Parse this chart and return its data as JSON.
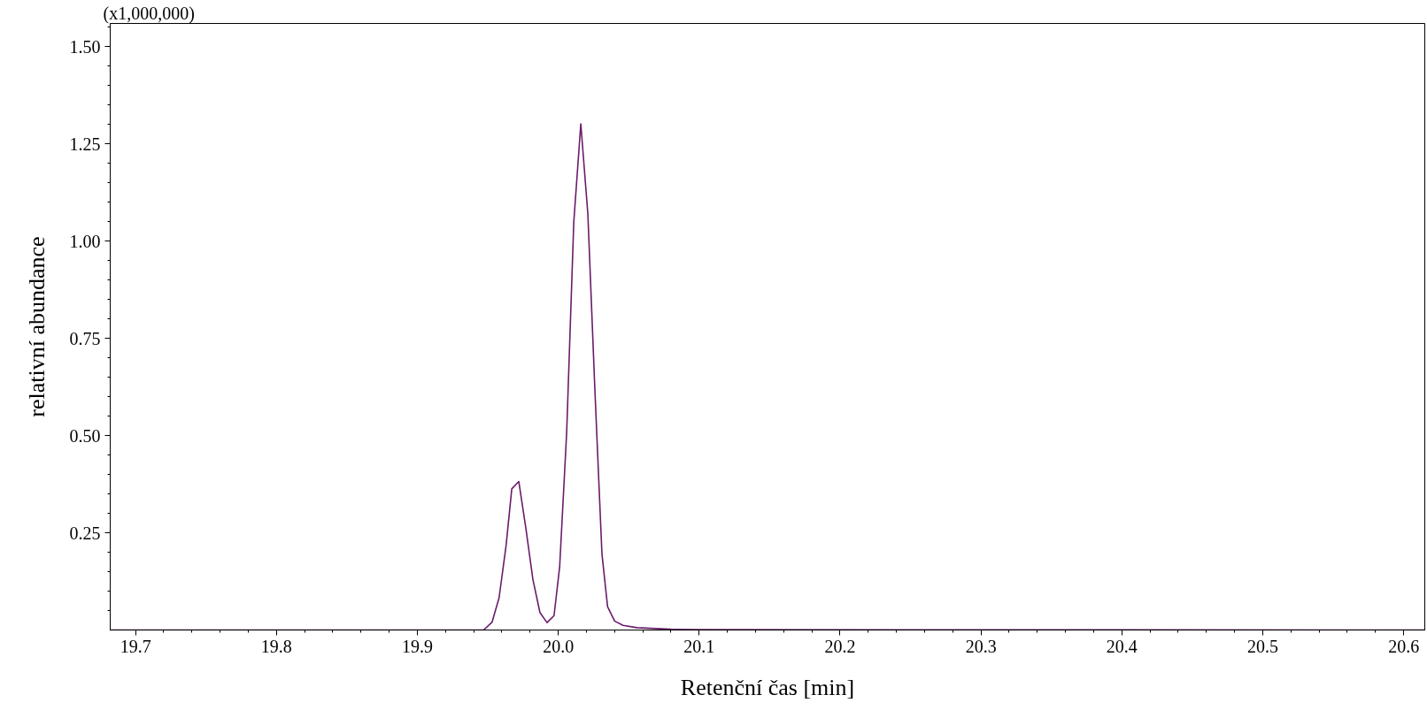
{
  "chart_data": {
    "type": "line",
    "xlabel": "Retenční čas [min]",
    "ylabel": "relativní abundance",
    "annotations": [
      "(x1,000,000)"
    ],
    "x": [
      19.682,
      19.9306,
      19.947,
      19.953,
      19.958,
      19.963,
      19.967,
      19.972,
      19.977,
      19.982,
      19.987,
      19.992,
      19.997,
      20.001,
      20.006,
      20.011,
      20.016,
      20.021,
      20.026,
      20.031,
      20.035,
      20.04,
      20.046,
      20.056,
      20.08,
      20.1,
      20.615
    ],
    "series": [
      {
        "color": "#6a1b6a",
        "values": [
          0,
          0,
          0,
          0.02,
          0.083,
          0.218,
          0.363,
          0.382,
          0.262,
          0.13,
          0.045,
          0.019,
          0.037,
          0.163,
          0.511,
          1.048,
          1.302,
          1.07,
          0.617,
          0.196,
          0.06,
          0.023,
          0.012,
          0.006,
          0.002,
          0.001,
          0
        ]
      }
    ],
    "xlim": [
      19.682,
      20.615
    ],
    "ylim": [
      0,
      1.56
    ],
    "xticks": [
      19.7,
      {
        "value": 19.72,
        "label": null
      },
      {
        "value": 19.74,
        "label": null
      },
      {
        "value": 19.76,
        "label": null
      },
      {
        "value": 19.78,
        "label": null
      },
      19.8,
      {
        "value": 19.82,
        "label": null
      },
      {
        "value": 19.84,
        "label": null
      },
      {
        "value": 19.86,
        "label": null
      },
      {
        "value": 19.88,
        "label": null
      },
      19.9,
      {
        "value": 19.92,
        "label": null
      },
      {
        "value": 19.94,
        "label": null
      },
      {
        "value": 19.96,
        "label": null
      },
      {
        "value": 19.98,
        "label": null
      },
      {
        "value": 20.0,
        "label": "20.0"
      },
      {
        "value": 20.02,
        "label": null
      },
      {
        "value": 20.04,
        "label": null
      },
      {
        "value": 20.06,
        "label": null
      },
      {
        "value": 20.08,
        "label": null
      },
      20.1,
      {
        "value": 20.12,
        "label": null
      },
      {
        "value": 20.14,
        "label": null
      },
      {
        "value": 20.16,
        "label": null
      },
      {
        "value": 20.18,
        "label": null
      },
      20.2,
      {
        "value": 20.22,
        "label": null
      },
      {
        "value": 20.24,
        "label": null
      },
      {
        "value": 20.26,
        "label": null
      },
      {
        "value": 20.28,
        "label": null
      },
      20.3,
      {
        "value": 20.32,
        "label": null
      },
      {
        "value": 20.34,
        "label": null
      },
      {
        "value": 20.36,
        "label": null
      },
      {
        "value": 20.38,
        "label": null
      },
      20.4,
      {
        "value": 20.42,
        "label": null
      },
      {
        "value": 20.44,
        "label": null
      },
      {
        "value": 20.46,
        "label": null
      },
      {
        "value": 20.48,
        "label": null
      },
      20.5,
      {
        "value": 20.52,
        "label": null
      },
      {
        "value": 20.54,
        "label": null
      },
      {
        "value": 20.56,
        "label": null
      },
      {
        "value": 20.58,
        "label": null
      },
      20.6
    ],
    "yticks": [
      {
        "value": 0.05,
        "label": null
      },
      {
        "value": 0.1,
        "label": null
      },
      {
        "value": 0.15,
        "label": null
      },
      {
        "value": 0.2,
        "label": null
      },
      0.25,
      {
        "value": 0.3,
        "label": null
      },
      {
        "value": 0.35,
        "label": null
      },
      {
        "value": 0.4,
        "label": null
      },
      {
        "value": 0.45,
        "label": null
      },
      {
        "value": 0.5,
        "label": "0.50"
      },
      {
        "value": 0.55,
        "label": null
      },
      {
        "value": 0.6,
        "label": null
      },
      {
        "value": 0.65,
        "label": null
      },
      {
        "value": 0.7,
        "label": null
      },
      0.75,
      {
        "value": 0.8,
        "label": null
      },
      {
        "value": 0.85,
        "label": null
      },
      {
        "value": 0.9,
        "label": null
      },
      {
        "value": 0.95,
        "label": null
      },
      {
        "value": 1.0,
        "label": "1.00"
      },
      {
        "value": 1.05,
        "label": null
      },
      {
        "value": 1.1,
        "label": null
      },
      {
        "value": 1.15,
        "label": null
      },
      {
        "value": 1.2,
        "label": null
      },
      1.25,
      {
        "value": 1.3,
        "label": null
      },
      {
        "value": 1.35,
        "label": null
      },
      {
        "value": 1.4,
        "label": null
      },
      {
        "value": 1.45,
        "label": null
      },
      {
        "value": 1.5,
        "label": "1.50"
      },
      {
        "value": 1.55,
        "label": null
      }
    ],
    "grid": false,
    "marker": "none",
    "line_style": "solid"
  }
}
